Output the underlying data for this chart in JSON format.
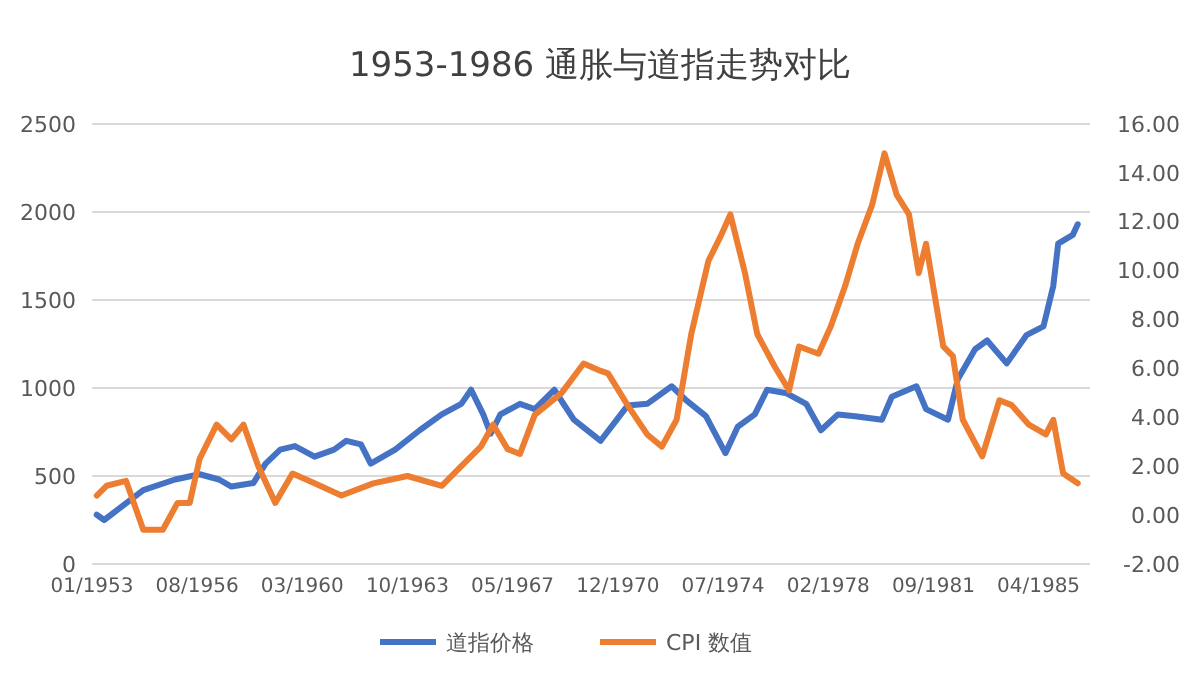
{
  "chart_data": {
    "type": "line",
    "title": "1953-1986 通胀与道指走势对比",
    "xlim": [
      "1953-01",
      "1987-01"
    ],
    "xticks": [
      {
        "value": "1953-01",
        "label": "01/1953"
      },
      {
        "value": "1956-08",
        "label": "08/1956"
      },
      {
        "value": "1960-03",
        "label": "03/1960"
      },
      {
        "value": "1963-10",
        "label": "10/1963"
      },
      {
        "value": "1967-05",
        "label": "05/1967"
      },
      {
        "value": "1970-12",
        "label": "12/1970"
      },
      {
        "value": "1974-07",
        "label": "07/1974"
      },
      {
        "value": "1978-02",
        "label": "02/1978"
      },
      {
        "value": "1981-09",
        "label": "09/1981"
      },
      {
        "value": "1985-04",
        "label": "04/1985"
      }
    ],
    "ylim": [
      0,
      2500
    ],
    "yticks": [
      0,
      500,
      1000,
      1500,
      2000,
      2500
    ],
    "y2lim": [
      -2,
      16
    ],
    "y2ticks": [
      {
        "value": -2,
        "label": "-2.00"
      },
      {
        "value": 0,
        "label": "0.00"
      },
      {
        "value": 2,
        "label": "2.00"
      },
      {
        "value": 4,
        "label": "4.00"
      },
      {
        "value": 6,
        "label": "6.00"
      },
      {
        "value": 8,
        "label": "8.00"
      },
      {
        "value": 10,
        "label": "10.00"
      },
      {
        "value": 12,
        "label": "12.00"
      },
      {
        "value": 14,
        "label": "14.00"
      },
      {
        "value": 16,
        "label": "16.00"
      }
    ],
    "grid": "y",
    "legend": "bottom",
    "series": [
      {
        "name": "道指价格",
        "color": "#4472c4",
        "x": [
          "1953-03",
          "1953-06",
          "1954-10",
          "1955-11",
          "1956-09",
          "1957-05",
          "1957-10",
          "1958-07",
          "1958-12",
          "1959-06",
          "1959-12",
          "1960-08",
          "1961-04",
          "1961-09",
          "1962-03",
          "1962-07",
          "1963-05",
          "1964-03",
          "1964-12",
          "1965-08",
          "1965-12",
          "1966-05",
          "1966-08",
          "1966-12",
          "1967-08",
          "1968-02",
          "1968-10",
          "1969-06",
          "1970-05",
          "1971-04",
          "1971-12",
          "1972-10",
          "1973-04",
          "1973-12",
          "1974-08",
          "1975-01",
          "1975-08",
          "1976-01",
          "1976-09",
          "1977-05",
          "1977-11",
          "1978-06",
          "1979-01",
          "1979-12",
          "1980-04",
          "1981-02",
          "1981-06",
          "1982-03",
          "1982-07",
          "1983-02",
          "1983-07",
          "1984-03",
          "1984-11",
          "1985-06",
          "1985-10",
          "1985-12",
          "1986-06",
          "1986-08"
        ],
        "values": [
          280,
          250,
          420,
          480,
          510,
          480,
          440,
          460,
          570,
          650,
          670,
          610,
          650,
          700,
          680,
          570,
          650,
          760,
          850,
          910,
          990,
          850,
          740,
          850,
          910,
          880,
          990,
          820,
          700,
          900,
          910,
          1010,
          930,
          840,
          630,
          780,
          850,
          990,
          970,
          910,
          760,
          850,
          840,
          820,
          950,
          1010,
          880,
          820,
          1050,
          1220,
          1270,
          1140,
          1300,
          1350,
          1580,
          1820,
          1870,
          1930
        ]
      },
      {
        "name": "CPI 数值",
        "color": "#ed7d31",
        "axis": "y2",
        "x": [
          "1953-03",
          "1953-07",
          "1954-03",
          "1954-10",
          "1955-06",
          "1955-12",
          "1956-05",
          "1956-09",
          "1957-04",
          "1957-10",
          "1958-03",
          "1958-09",
          "1959-04",
          "1959-11",
          "1960-08",
          "1961-07",
          "1962-08",
          "1963-10",
          "1964-12",
          "1965-08",
          "1966-04",
          "1966-09",
          "1967-03",
          "1967-08",
          "1968-02",
          "1969-01",
          "1969-10",
          "1970-05",
          "1970-08",
          "1971-04",
          "1971-12",
          "1972-06",
          "1972-12",
          "1973-06",
          "1974-01",
          "1974-06",
          "1974-10",
          "1975-04",
          "1975-09",
          "1976-04",
          "1976-10",
          "1977-02",
          "1977-10",
          "1978-03",
          "1978-09",
          "1979-02",
          "1979-08",
          "1980-01",
          "1980-06",
          "1980-11",
          "1981-03",
          "1981-06",
          "1982-01",
          "1982-05",
          "1982-09",
          "1983-05",
          "1983-12",
          "1984-05",
          "1984-12",
          "1985-07",
          "1985-10",
          "1986-02",
          "1986-08"
        ],
        "values": [
          0.8,
          1.2,
          1.4,
          -0.6,
          -0.6,
          0.5,
          0.5,
          2.3,
          3.7,
          3.1,
          3.7,
          2.0,
          0.5,
          1.7,
          1.3,
          0.8,
          1.3,
          1.6,
          1.2,
          2.0,
          2.8,
          3.7,
          2.7,
          2.5,
          4.1,
          5.0,
          6.2,
          5.9,
          5.8,
          4.5,
          3.3,
          2.8,
          3.9,
          7.4,
          10.4,
          11.4,
          12.3,
          9.9,
          7.4,
          6.1,
          5.1,
          6.9,
          6.6,
          7.7,
          9.4,
          11.1,
          12.7,
          14.8,
          13.1,
          12.3,
          9.9,
          11.1,
          6.9,
          6.5,
          3.9,
          2.4,
          4.7,
          4.5,
          3.7,
          3.3,
          3.9,
          1.7,
          1.3
        ]
      }
    ]
  }
}
